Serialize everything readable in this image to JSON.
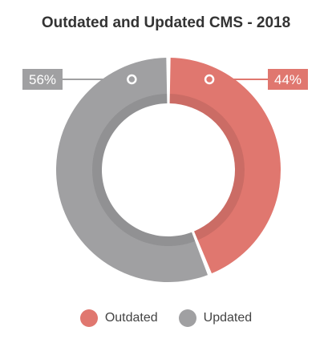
{
  "chart_data": {
    "type": "pie",
    "variant": "donut",
    "title": "Outdated and Updated CMS - 2018",
    "categories": [
      "Outdated",
      "Updated"
    ],
    "values": [
      44,
      56
    ],
    "value_labels": [
      "44%",
      "56%"
    ],
    "colors": [
      "#e0776f",
      "#a0a0a2"
    ],
    "legend_position": "bottom"
  },
  "legend": {
    "items": [
      {
        "label": "Outdated",
        "color": "#e0776f"
      },
      {
        "label": "Updated",
        "color": "#a0a0a2"
      }
    ]
  }
}
